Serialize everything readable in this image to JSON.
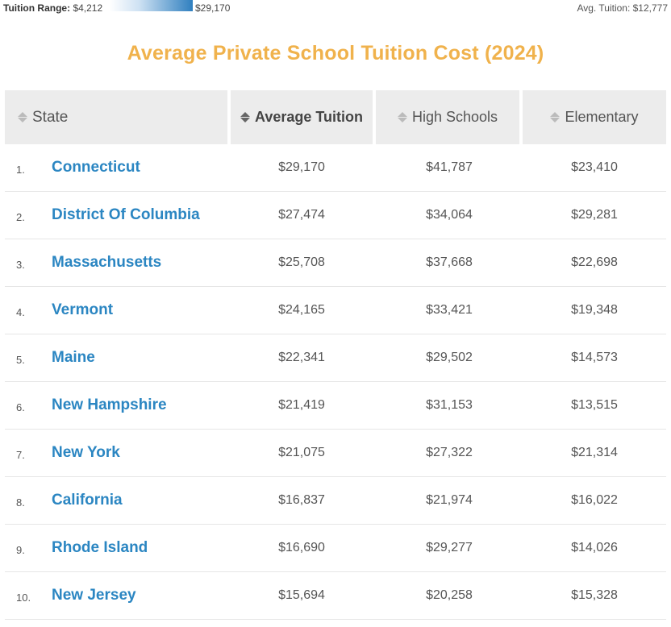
{
  "legend": {
    "range_prefix": "Tuition Range:",
    "range_min": "$4,212",
    "range_max": "$29,170",
    "avg_label": "Avg. Tuition: $12,777"
  },
  "title": "Average Private School Tuition Cost (2024)",
  "table": {
    "headers": {
      "state": "State",
      "average": "Average Tuition",
      "high": "High Schools",
      "elementary": "Elementary"
    },
    "rows": [
      {
        "rank": "1.",
        "state": "Connecticut",
        "average": "$29,170",
        "high": "$41,787",
        "elementary": "$23,410"
      },
      {
        "rank": "2.",
        "state": "District Of Columbia",
        "average": "$27,474",
        "high": "$34,064",
        "elementary": "$29,281"
      },
      {
        "rank": "3.",
        "state": "Massachusetts",
        "average": "$25,708",
        "high": "$37,668",
        "elementary": "$22,698"
      },
      {
        "rank": "4.",
        "state": "Vermont",
        "average": "$24,165",
        "high": "$33,421",
        "elementary": "$19,348"
      },
      {
        "rank": "5.",
        "state": "Maine",
        "average": "$22,341",
        "high": "$29,502",
        "elementary": "$14,573"
      },
      {
        "rank": "6.",
        "state": "New Hampshire",
        "average": "$21,419",
        "high": "$31,153",
        "elementary": "$13,515"
      },
      {
        "rank": "7.",
        "state": "New York",
        "average": "$21,075",
        "high": "$27,322",
        "elementary": "$21,314"
      },
      {
        "rank": "8.",
        "state": "California",
        "average": "$16,837",
        "high": "$21,974",
        "elementary": "$16,022"
      },
      {
        "rank": "9.",
        "state": "Rhode Island",
        "average": "$16,690",
        "high": "$29,277",
        "elementary": "$14,026"
      },
      {
        "rank": "10.",
        "state": "New Jersey",
        "average": "$15,694",
        "high": "$20,258",
        "elementary": "$15,328"
      }
    ]
  },
  "colors": {
    "title": "#f0b24c",
    "link": "#2b86c2",
    "header_bg": "#ececec",
    "range_bar_end": "#2f7fbf"
  },
  "icons": {
    "sort": "sort-arrows-icon"
  }
}
